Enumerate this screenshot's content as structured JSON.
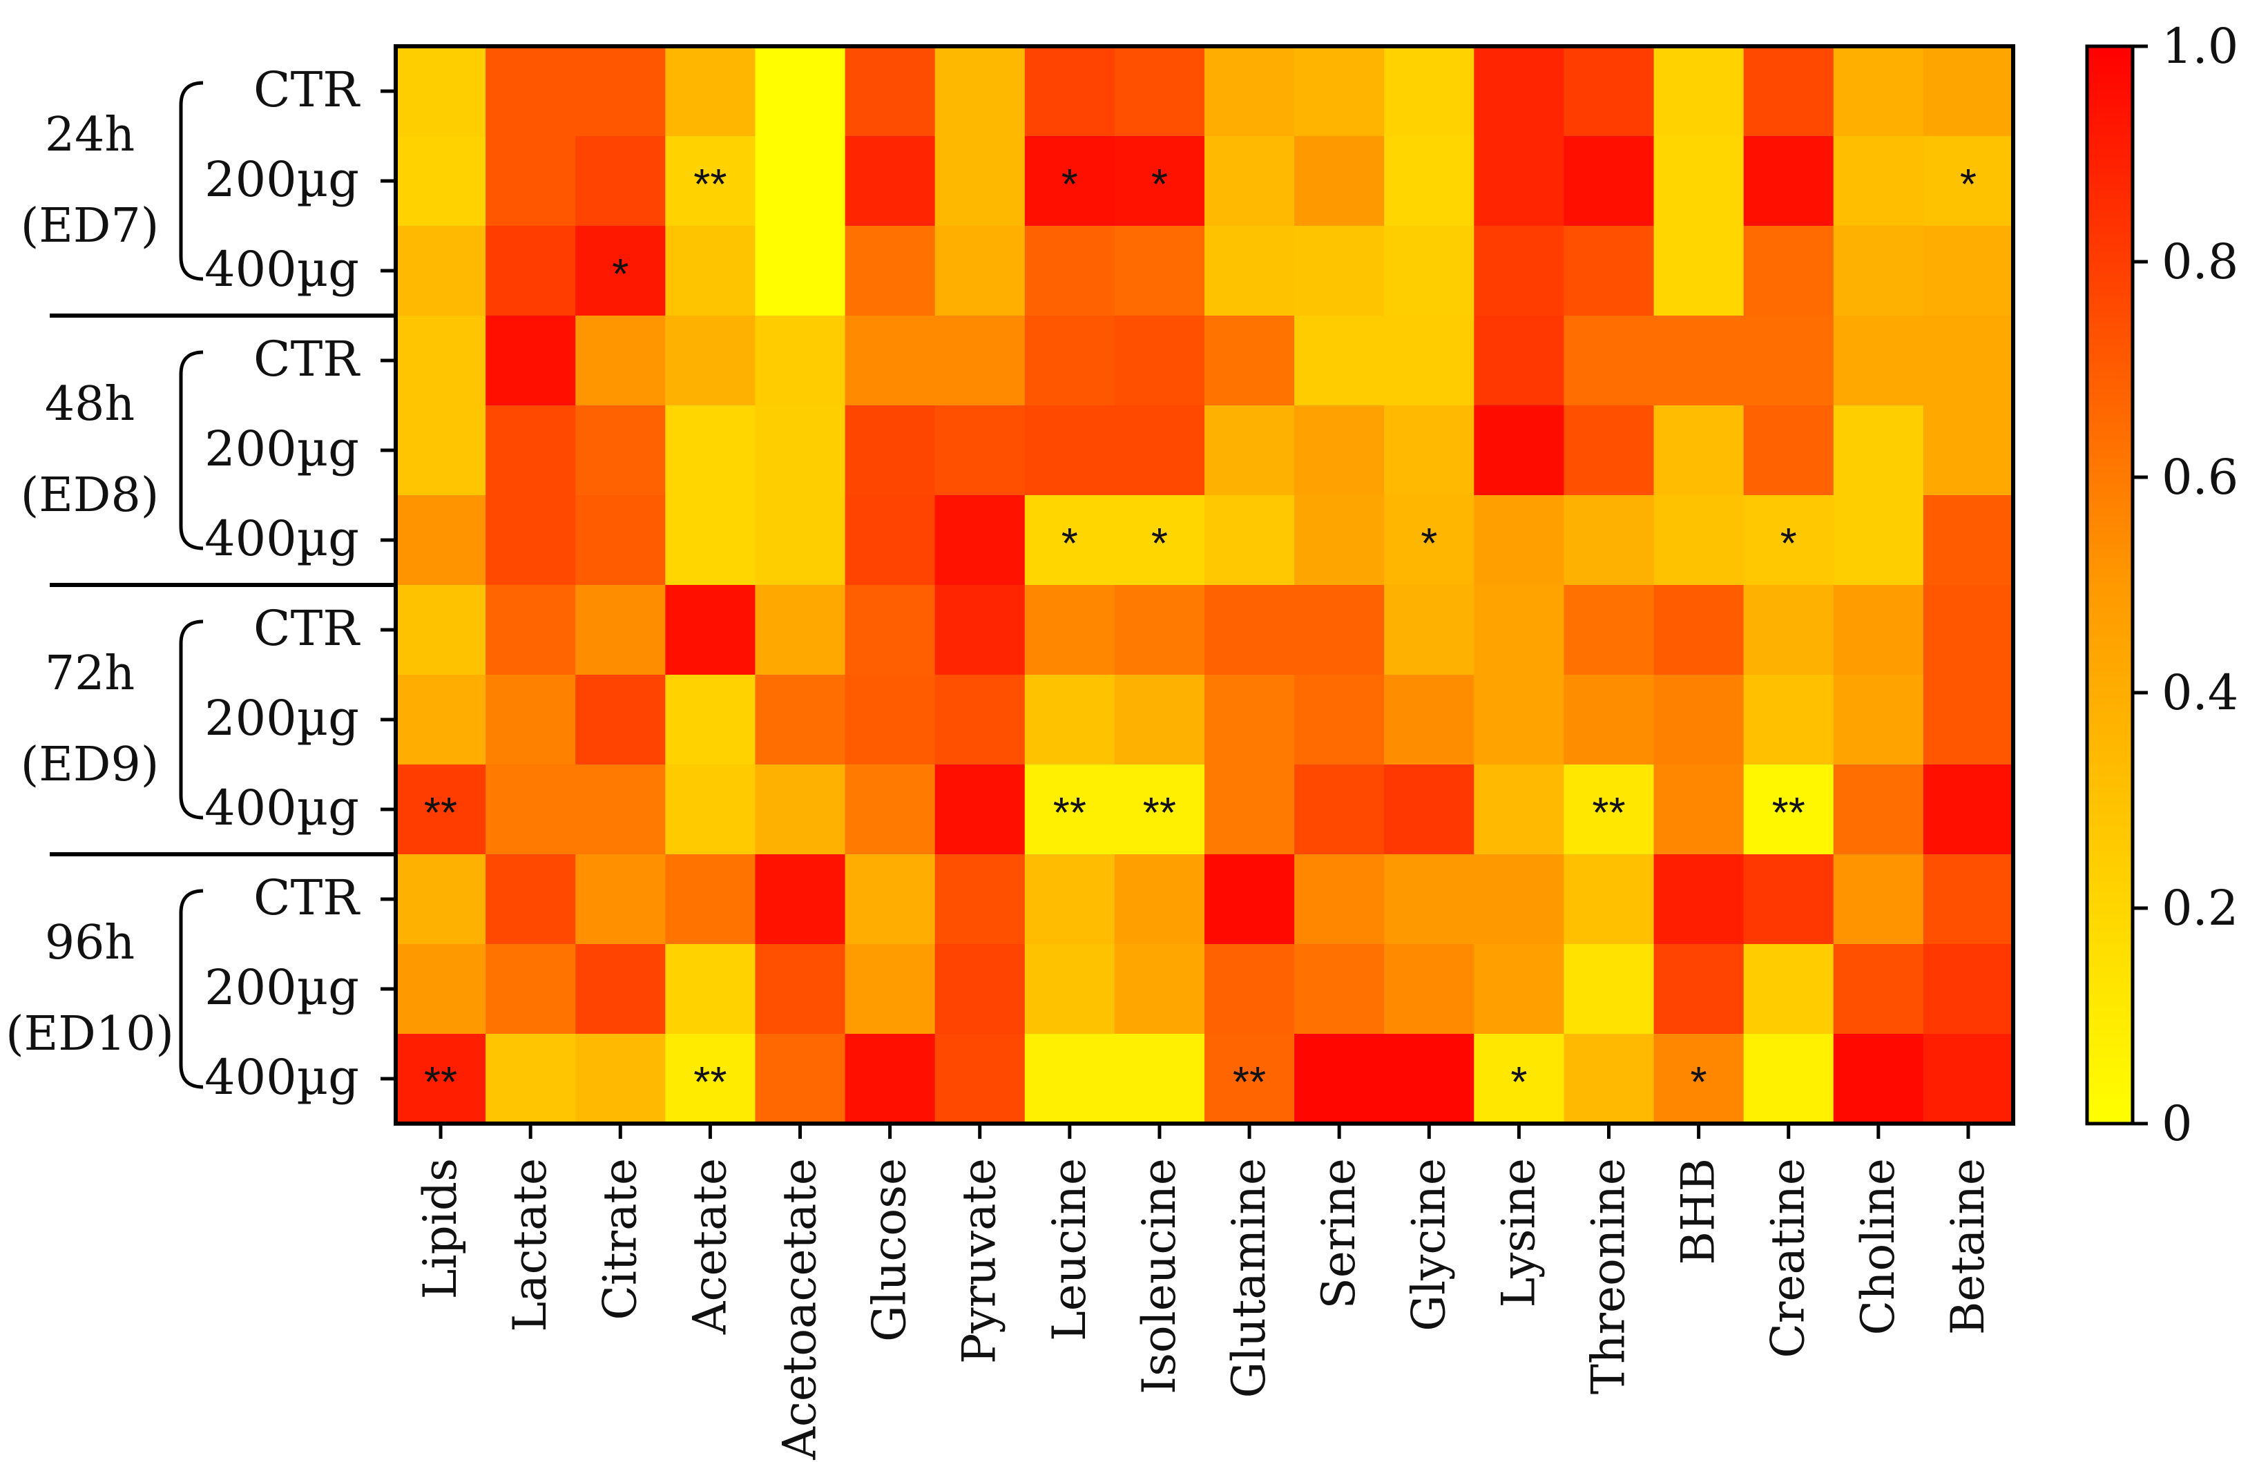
{
  "chart_data": {
    "type": "heatmap",
    "title": "",
    "xlabel": "",
    "ylabel": "",
    "columns": [
      "Lipids",
      "Lactate",
      "Citrate",
      "Acetate",
      "Acetoacetate",
      "Glucose",
      "Pyruvate",
      "Leucine",
      "Isoleucine",
      "Glutamine",
      "Serine",
      "Glycine",
      "Lysine",
      "Threonine",
      "BHB",
      "Creatine",
      "Choline",
      "Betaine"
    ],
    "rows": [
      "CTR",
      "200µg",
      "400µg",
      "CTR",
      "200µg",
      "400µg",
      "CTR",
      "200µg",
      "400µg",
      "CTR",
      "200µg",
      "400µg"
    ],
    "groups": [
      {
        "time": "24h",
        "day": "(ED7)"
      },
      {
        "time": "48h",
        "day": "(ED8)"
      },
      {
        "time": "72h",
        "day": "(ED9)"
      },
      {
        "time": "96h",
        "day": "(ED10)"
      }
    ],
    "values": [
      [
        0.24,
        0.72,
        0.72,
        0.36,
        0.01,
        0.75,
        0.35,
        0.78,
        0.74,
        0.4,
        0.37,
        0.22,
        0.88,
        0.8,
        0.22,
        0.76,
        0.39,
        0.44
      ],
      [
        0.22,
        0.72,
        0.78,
        0.22,
        0.01,
        0.88,
        0.35,
        0.95,
        0.94,
        0.34,
        0.5,
        0.2,
        0.88,
        0.95,
        0.2,
        0.95,
        0.32,
        0.3
      ],
      [
        0.34,
        0.8,
        0.92,
        0.29,
        0.01,
        0.63,
        0.39,
        0.68,
        0.65,
        0.3,
        0.29,
        0.24,
        0.8,
        0.74,
        0.2,
        0.65,
        0.38,
        0.4
      ],
      [
        0.28,
        0.95,
        0.51,
        0.38,
        0.25,
        0.55,
        0.55,
        0.72,
        0.74,
        0.62,
        0.25,
        0.25,
        0.82,
        0.64,
        0.64,
        0.64,
        0.42,
        0.42
      ],
      [
        0.28,
        0.76,
        0.68,
        0.2,
        0.24,
        0.77,
        0.74,
        0.76,
        0.76,
        0.38,
        0.46,
        0.34,
        0.96,
        0.74,
        0.33,
        0.68,
        0.24,
        0.42
      ],
      [
        0.52,
        0.76,
        0.7,
        0.2,
        0.24,
        0.78,
        0.94,
        0.2,
        0.2,
        0.27,
        0.44,
        0.36,
        0.47,
        0.38,
        0.3,
        0.27,
        0.24,
        0.7
      ],
      [
        0.3,
        0.67,
        0.54,
        0.95,
        0.42,
        0.69,
        0.88,
        0.56,
        0.6,
        0.68,
        0.68,
        0.38,
        0.45,
        0.63,
        0.7,
        0.38,
        0.48,
        0.72
      ],
      [
        0.4,
        0.58,
        0.78,
        0.22,
        0.64,
        0.7,
        0.74,
        0.3,
        0.38,
        0.6,
        0.65,
        0.54,
        0.45,
        0.54,
        0.58,
        0.31,
        0.45,
        0.72
      ],
      [
        0.8,
        0.6,
        0.6,
        0.26,
        0.38,
        0.6,
        0.95,
        0.08,
        0.08,
        0.6,
        0.76,
        0.82,
        0.34,
        0.12,
        0.56,
        0.04,
        0.64,
        0.95
      ],
      [
        0.38,
        0.76,
        0.53,
        0.62,
        0.94,
        0.4,
        0.74,
        0.33,
        0.47,
        0.97,
        0.56,
        0.5,
        0.5,
        0.31,
        0.9,
        0.82,
        0.52,
        0.74
      ],
      [
        0.5,
        0.62,
        0.78,
        0.22,
        0.74,
        0.48,
        0.78,
        0.3,
        0.43,
        0.68,
        0.63,
        0.55,
        0.47,
        0.14,
        0.78,
        0.25,
        0.74,
        0.82
      ],
      [
        0.9,
        0.28,
        0.34,
        0.1,
        0.66,
        0.95,
        0.76,
        0.08,
        0.08,
        0.67,
        0.98,
        0.98,
        0.12,
        0.34,
        0.56,
        0.07,
        0.97,
        0.9
      ]
    ],
    "significance": [
      [
        "",
        "",
        "",
        "",
        "",
        "",
        "",
        "",
        "",
        "",
        "",
        "",
        "",
        "",
        "",
        "",
        "",
        ""
      ],
      [
        "",
        "",
        "",
        "**",
        "",
        "",
        "",
        "*",
        "*",
        "",
        "",
        "",
        "",
        "",
        "",
        "",
        "",
        "*"
      ],
      [
        "",
        "",
        "*",
        "",
        "",
        "",
        "",
        "",
        "",
        "",
        "",
        "",
        "",
        "",
        "",
        "",
        "",
        ""
      ],
      [
        "",
        "",
        "",
        "",
        "",
        "",
        "",
        "",
        "",
        "",
        "",
        "",
        "",
        "",
        "",
        "",
        "",
        ""
      ],
      [
        "",
        "",
        "",
        "",
        "",
        "",
        "",
        "",
        "",
        "",
        "",
        "",
        "",
        "",
        "",
        "",
        "",
        ""
      ],
      [
        "",
        "",
        "",
        "",
        "",
        "",
        "",
        "*",
        "*",
        "",
        "",
        "*",
        "",
        "",
        "",
        "*",
        "",
        ""
      ],
      [
        "",
        "",
        "",
        "",
        "",
        "",
        "",
        "",
        "",
        "",
        "",
        "",
        "",
        "",
        "",
        "",
        "",
        ""
      ],
      [
        "",
        "",
        "",
        "",
        "",
        "",
        "",
        "",
        "",
        "",
        "",
        "",
        "",
        "",
        "",
        "",
        "",
        ""
      ],
      [
        "**",
        "",
        "",
        "",
        "",
        "",
        "",
        "**",
        "**",
        "",
        "",
        "",
        "",
        "**",
        "",
        "**",
        "",
        ""
      ],
      [
        "",
        "",
        "",
        "",
        "",
        "",
        "",
        "",
        "",
        "",
        "",
        "",
        "",
        "",
        "",
        "",
        "",
        ""
      ],
      [
        "",
        "",
        "",
        "",
        "",
        "",
        "",
        "",
        "",
        "",
        "",
        "",
        "",
        "",
        "",
        "",
        "",
        ""
      ],
      [
        "**",
        "",
        "",
        "**",
        "",
        "",
        "",
        "",
        "",
        "**",
        "",
        "",
        "*",
        "",
        "*",
        "",
        "",
        ""
      ]
    ],
    "colorbar": {
      "range": [
        0,
        1.0
      ],
      "ticks": [
        "0",
        "0.2",
        "0.4",
        "0.6",
        "0.8",
        "1.0"
      ],
      "colors": {
        "low": "#ffff00",
        "mid": "#ff9900",
        "high": "#ff0000"
      }
    }
  }
}
